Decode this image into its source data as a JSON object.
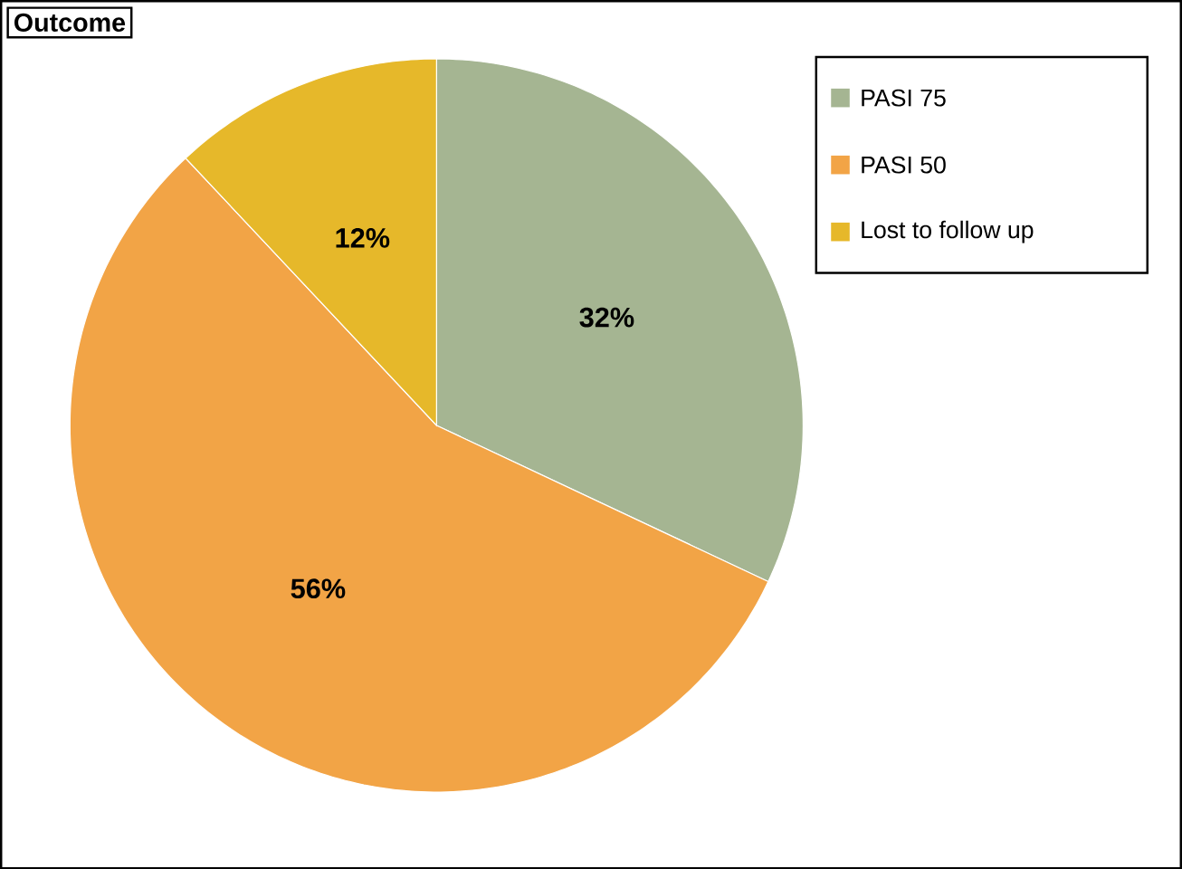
{
  "chart_data": {
    "type": "pie",
    "title": "Outcome",
    "categories": [
      "PASI 75",
      "PASI 50",
      "Lost to follow up"
    ],
    "values": [
      32,
      56,
      12
    ],
    "value_labels": [
      "32%",
      "56%",
      "12%"
    ],
    "colors": [
      "#a5b592",
      "#f2a446",
      "#e6b82a"
    ],
    "legend": "top right"
  }
}
